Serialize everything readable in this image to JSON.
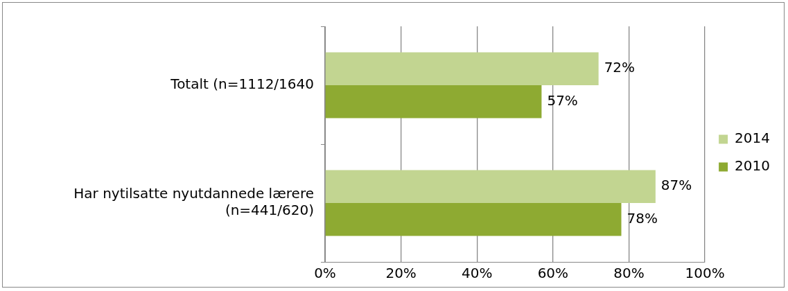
{
  "chart_data": {
    "type": "bar",
    "orientation": "horizontal",
    "categories": [
      "Totalt (n=1112/1640",
      "Har nytilsatte nyutdannede lærere (n=441/620)"
    ],
    "series": [
      {
        "name": "2014",
        "color": "#c2d591",
        "values": [
          72,
          87
        ],
        "value_labels": [
          "72%",
          "87%"
        ]
      },
      {
        "name": "2010",
        "color": "#8eaa32",
        "values": [
          57,
          78
        ],
        "value_labels": [
          "57%",
          "78%"
        ]
      }
    ],
    "xlim": [
      0,
      100
    ],
    "xticks": [
      {
        "value": 0,
        "label": "0%"
      },
      {
        "value": 20,
        "label": "20%"
      },
      {
        "value": 40,
        "label": "40%"
      },
      {
        "value": 60,
        "label": "60%"
      },
      {
        "value": 80,
        "label": "80%"
      },
      {
        "value": 100,
        "label": "100%"
      }
    ],
    "grid": "x",
    "legend": "right"
  }
}
